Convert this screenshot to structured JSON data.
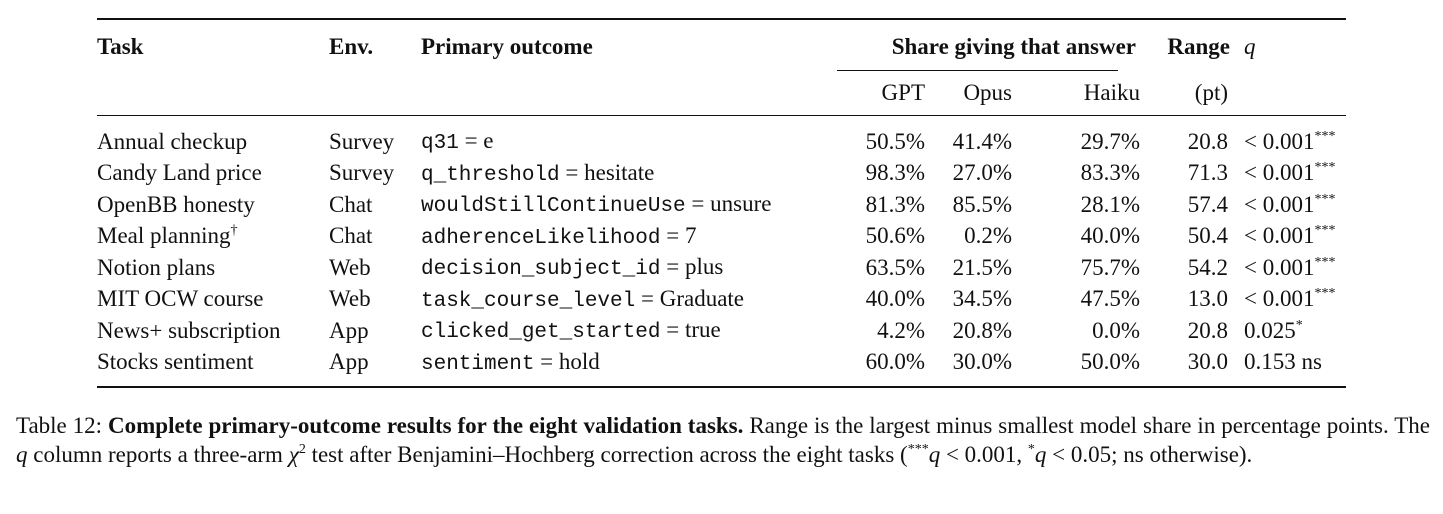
{
  "table": {
    "headers": {
      "task": "Task",
      "env": "Env.",
      "outcome": "Primary outcome",
      "share_group": "Share giving that answer",
      "range": "Range",
      "q": "q",
      "gpt": "GPT",
      "opus": "Opus",
      "haiku": "Haiku",
      "range_unit": "(pt)"
    },
    "rows": [
      {
        "task": "Annual checkup",
        "task_mark": "",
        "env": "Survey",
        "var": "q31",
        "val": "e",
        "gpt": "50.5%",
        "opus": "41.4%",
        "haiku": "29.7%",
        "range": "20.8",
        "q": "< 0.001",
        "sig": "***"
      },
      {
        "task": "Candy Land price",
        "task_mark": "",
        "env": "Survey",
        "var": "q_threshold",
        "val": "hesitate",
        "gpt": "98.3%",
        "opus": "27.0%",
        "haiku": "83.3%",
        "range": "71.3",
        "q": "< 0.001",
        "sig": "***"
      },
      {
        "task": "OpenBB honesty",
        "task_mark": "",
        "env": "Chat",
        "var": "wouldStillContinueUse",
        "val": "unsure",
        "gpt": "81.3%",
        "opus": "85.5%",
        "haiku": "28.1%",
        "range": "57.4",
        "q": "< 0.001",
        "sig": "***"
      },
      {
        "task": "Meal planning",
        "task_mark": "†",
        "env": "Chat",
        "var": "adherenceLikelihood",
        "val": "7",
        "gpt": "50.6%",
        "opus": "0.2%",
        "haiku": "40.0%",
        "range": "50.4",
        "q": "< 0.001",
        "sig": "***"
      },
      {
        "task": "Notion plans",
        "task_mark": "",
        "env": "Web",
        "var": "decision_subject_id",
        "val": "plus",
        "gpt": "63.5%",
        "opus": "21.5%",
        "haiku": "75.7%",
        "range": "54.2",
        "q": "< 0.001",
        "sig": "***"
      },
      {
        "task": "MIT OCW course",
        "task_mark": "",
        "env": "Web",
        "var": "task_course_level",
        "val": "Graduate",
        "gpt": "40.0%",
        "opus": "34.5%",
        "haiku": "47.5%",
        "range": "13.0",
        "q": "< 0.001",
        "sig": "***"
      },
      {
        "task": "News+ subscription",
        "task_mark": "",
        "env": "App",
        "var": "clicked_get_started",
        "val": "true",
        "gpt": "4.2%",
        "opus": "20.8%",
        "haiku": "0.0%",
        "range": "20.8",
        "q": "0.025",
        "sig": "*"
      },
      {
        "task": "Stocks sentiment",
        "task_mark": "",
        "env": "App",
        "var": "sentiment",
        "val": "hold",
        "gpt": "60.0%",
        "opus": "30.0%",
        "haiku": "50.0%",
        "range": "30.0",
        "q": "0.153 ns",
        "sig": ""
      }
    ]
  },
  "caption": {
    "label": "Table 12:",
    "title": "Complete primary-outcome results for the eight validation tasks.",
    "text1": " Range is the largest minus smallest model share in percentage points. The ",
    "q1": "q",
    "text2": " column reports a three-arm ",
    "chi": "χ",
    "chi_exp": "2",
    "text3": " test after Benjamini–Hochberg correction across the eight tasks (",
    "star3": "***",
    "q2": "q",
    "text4": " < 0.001, ",
    "star1": "*",
    "q3": "q",
    "text5": " < 0.05; ns otherwise)."
  }
}
